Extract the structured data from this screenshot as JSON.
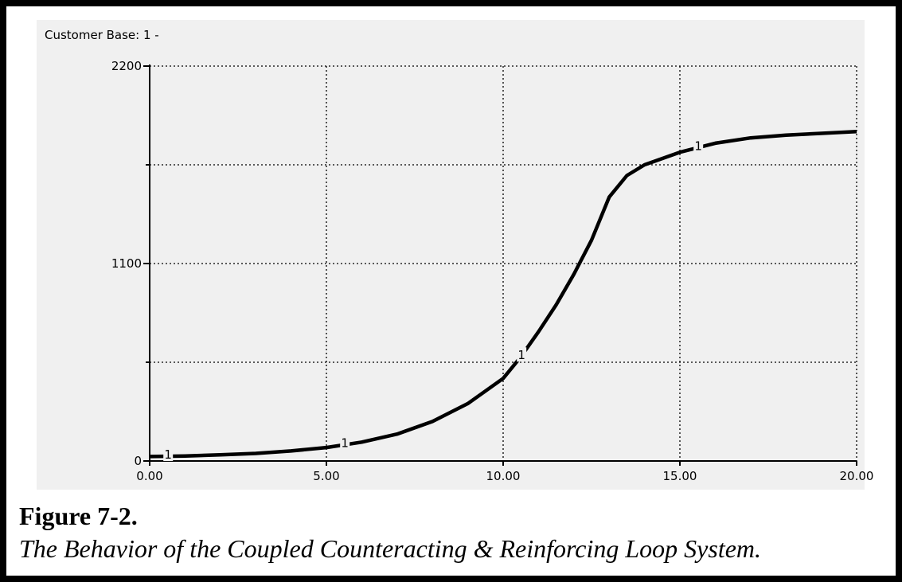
{
  "figure": {
    "title": "Figure 7-2.",
    "caption": "The Behavior of the Coupled Counteracting & Reinforcing Loop System."
  },
  "chart_data": {
    "type": "line",
    "title": "Customer Base: 1 -",
    "xlabel": "",
    "ylabel": "",
    "xlim": [
      0,
      20
    ],
    "ylim": [
      0,
      2200
    ],
    "x_ticks": [
      "0.00",
      "5.00",
      "10.00",
      "15.00",
      "20.00"
    ],
    "y_ticks": [
      "0",
      "1100",
      "2200"
    ],
    "grid": true,
    "series": [
      {
        "name": "1",
        "color": "#000000",
        "marker_x": [
          0.5,
          5.5,
          10.5,
          15.5
        ],
        "x": [
          0,
          1,
          2,
          3,
          4,
          5,
          6,
          7,
          8,
          9,
          10,
          10.5,
          11,
          11.5,
          12,
          12.5,
          13,
          13.5,
          14,
          15,
          16,
          17,
          18,
          19,
          20
        ],
        "y": [
          25,
          28,
          34,
          42,
          56,
          75,
          105,
          150,
          220,
          320,
          460,
          580,
          720,
          870,
          1040,
          1230,
          1470,
          1590,
          1650,
          1720,
          1770,
          1800,
          1815,
          1825,
          1835
        ]
      }
    ]
  }
}
